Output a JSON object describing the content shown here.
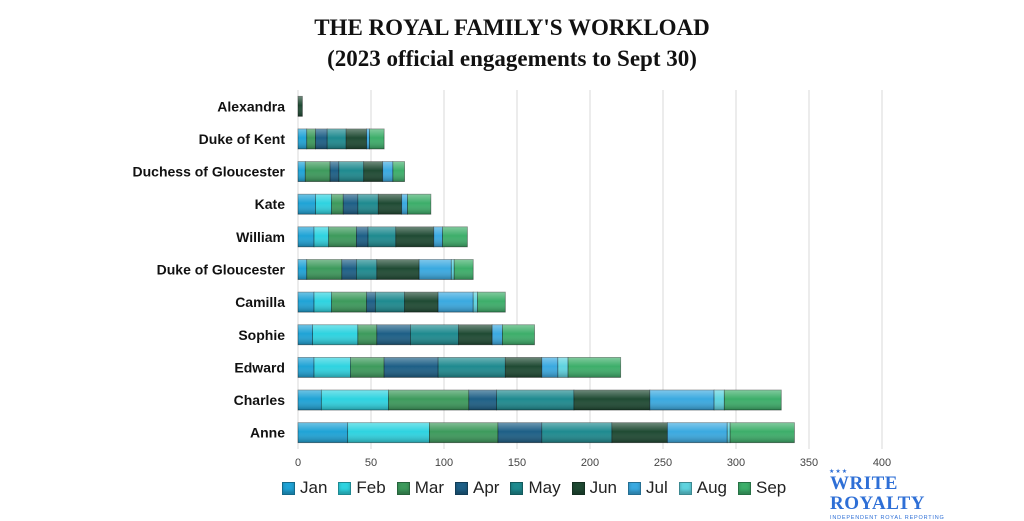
{
  "title_line1": "THE ROYAL FAMILY'S WORKLOAD",
  "title_line2": "(2023 official engagements to Sept 30)",
  "brand": {
    "name": "WRITE ROYALTY",
    "tagline": "INDEPENDENT ROYAL REPORTING",
    "stars": "★★★"
  },
  "chart_data": {
    "type": "bar",
    "orientation": "horizontal",
    "stacked": true,
    "title": "THE ROYAL FAMILY'S WORKLOAD (2023 official engagements to Sept 30)",
    "categories": [
      "Alexandra",
      "Duke of Kent",
      "Duchess of Gloucester",
      "Kate",
      "William",
      "Duke of Gloucester",
      "Camilla",
      "Sophie",
      "Edward",
      "Charles",
      "Anne"
    ],
    "series": [
      {
        "name": "Jan",
        "color": "#1fa3d6",
        "values": [
          0,
          6,
          5,
          12,
          11,
          6,
          11,
          10,
          11,
          16,
          34
        ]
      },
      {
        "name": "Feb",
        "color": "#2ed3e0",
        "values": [
          0,
          0,
          0,
          11,
          10,
          0,
          12,
          31,
          25,
          46,
          56
        ]
      },
      {
        "name": "Mar",
        "color": "#3d9a5c",
        "values": [
          0,
          6,
          17,
          8,
          19,
          24,
          24,
          13,
          23,
          55,
          47
        ]
      },
      {
        "name": "Apr",
        "color": "#1d5f86",
        "values": [
          0,
          8,
          6,
          10,
          8,
          10,
          6,
          23,
          37,
          19,
          30
        ]
      },
      {
        "name": "May",
        "color": "#1e8a8f",
        "values": [
          0,
          13,
          17,
          14,
          19,
          14,
          20,
          33,
          46,
          53,
          48
        ]
      },
      {
        "name": "Jun",
        "color": "#1f4a33",
        "values": [
          3,
          14,
          13,
          16,
          26,
          29,
          23,
          23,
          25,
          52,
          38
        ]
      },
      {
        "name": "Jul",
        "color": "#3aa9e0",
        "values": [
          0,
          2,
          7,
          4,
          6,
          22,
          24,
          7,
          11,
          44,
          41
        ]
      },
      {
        "name": "Aug",
        "color": "#5fd3df",
        "values": [
          0,
          0,
          0,
          0,
          0,
          2,
          3,
          0,
          7,
          7,
          2
        ]
      },
      {
        "name": "Sep",
        "color": "#3dae6a",
        "values": [
          0,
          10,
          8,
          16,
          17,
          13,
          19,
          22,
          36,
          39,
          44
        ]
      }
    ],
    "xlim": [
      0,
      400
    ],
    "xticks": [
      0,
      50,
      100,
      150,
      200,
      250,
      300,
      350,
      400
    ],
    "grid": true,
    "legend_position": "bottom"
  }
}
